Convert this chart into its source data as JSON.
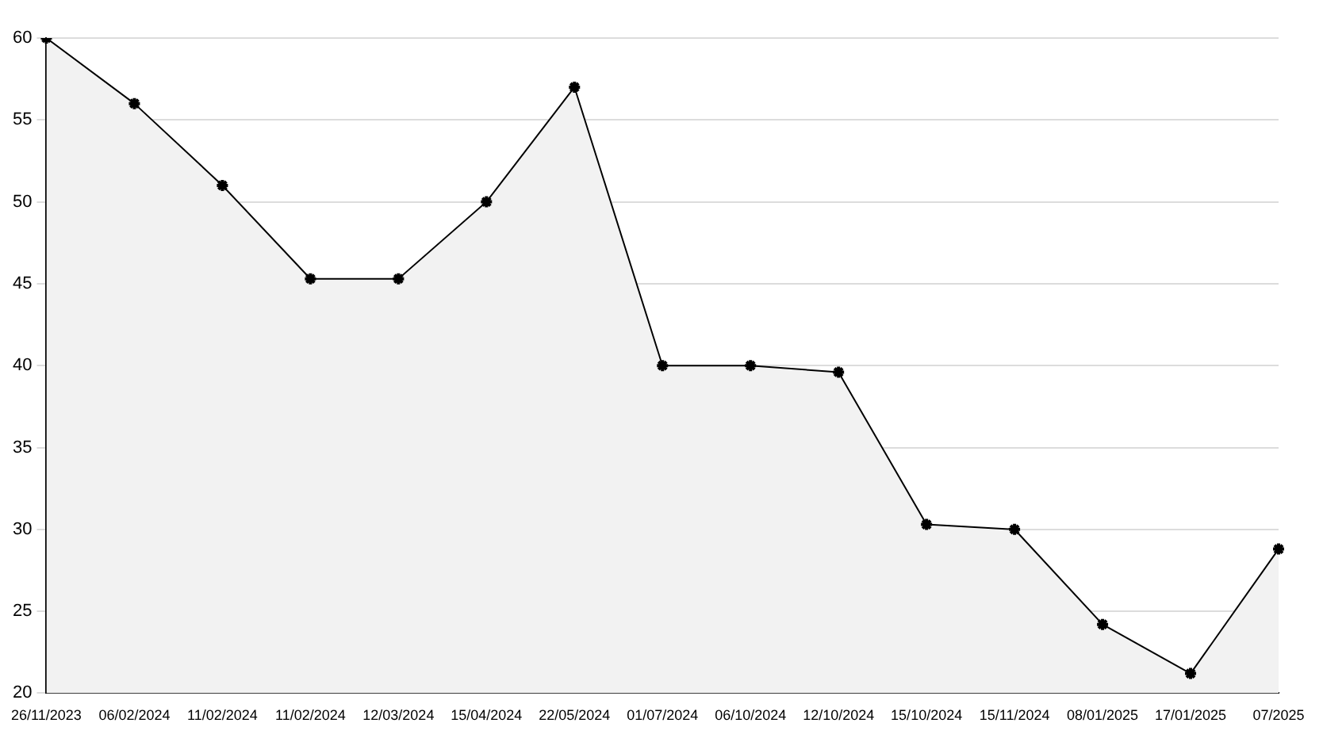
{
  "chart_data": {
    "type": "area",
    "categories": [
      "26/11/2023",
      "06/02/2024",
      "11/02/2024",
      "11/02/2024",
      "12/03/2024",
      "15/04/2024",
      "22/05/2024",
      "01/07/2024",
      "06/10/2024",
      "12/10/2024",
      "15/10/2024",
      "15/11/2024",
      "08/01/2025",
      "17/01/2025",
      "07/2025"
    ],
    "series": [
      {
        "color": "#000000",
        "values": [
          60,
          56,
          51,
          45.3,
          45.3,
          50,
          57,
          40,
          40,
          39.6,
          30.3,
          30,
          24.2,
          21.2,
          28.8
        ]
      }
    ],
    "ylim": [
      20,
      60
    ],
    "yticks": [
      20,
      25,
      30,
      35,
      40,
      45,
      50,
      55,
      60
    ],
    "grid": "y",
    "legend": false,
    "marker": "cross",
    "line_style": "solid"
  }
}
